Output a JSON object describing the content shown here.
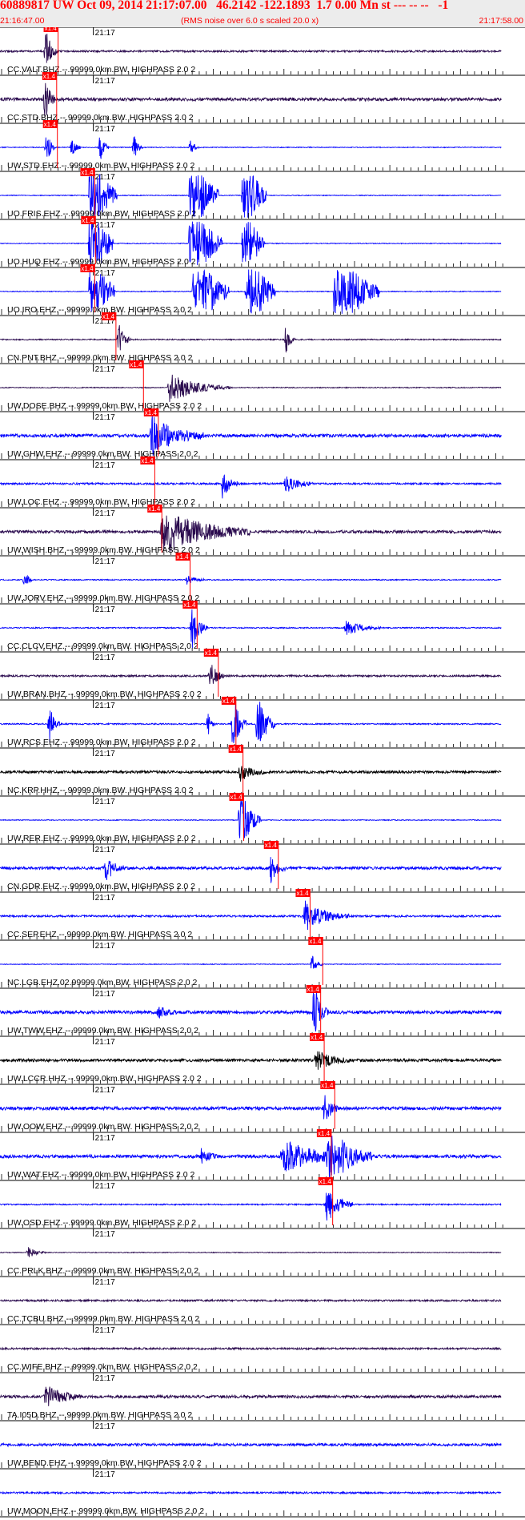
{
  "header": {
    "title": "60889817 UW Oct 09, 2014 21:17:07.00   46.2142 -122.1893  1.7 0.00 Mn st --- -- --   -1",
    "start_time": "21:16:47.00",
    "noise_note": "(RMS noise over 6.0 s scaled 20.0 x)",
    "end_time": "21:17:58.00"
  },
  "colors": {
    "red": "#ff0000",
    "blue": "#0000ff",
    "dark": "#2a0a4e",
    "black": "#000000"
  },
  "chart_data": {
    "type": "line",
    "title": "60889817 UW Oct 09, 2014 21:17:07.00",
    "x_range": [
      "21:16:47.00",
      "21:17:58.00"
    ],
    "minute_label": "21:17",
    "pick_label": "x1.4",
    "traces": [
      {
        "label": "CC.VALT.BHZ.--.99999.0km.BW. HIGHPASS  2.0  2",
        "color": "#2a0a4e",
        "noise": 0.14,
        "pick": 6.3,
        "bursts": [
          [
            6.5,
            2.0,
            0.7
          ]
        ]
      },
      {
        "label": "CC.STD.BHZ.--.99999.0km.BW. HIGHPASS  2.0  2",
        "color": "#2a0a4e",
        "noise": 0.24,
        "pick": 6.1,
        "bursts": [
          [
            6.4,
            2.0,
            0.6
          ]
        ]
      },
      {
        "label": "UW.STD.EHZ.--.99999.0km.BW. HIGHPASS  2.0  2",
        "color": "#0000ff",
        "noise": 0.06,
        "pick": 6.2,
        "bursts": [
          [
            6.6,
            1.6,
            0.5
          ],
          [
            10.2,
            0.9,
            0.5
          ],
          [
            14.2,
            1.4,
            0.5
          ],
          [
            19.0,
            1.1,
            0.5
          ],
          [
            27.0,
            0.7,
            0.5
          ]
        ]
      },
      {
        "label": "UO.FRIS.EHZ.--.99999.0km.BW. HIGHPASS  2.0  2",
        "color": "#0000ff",
        "noise": 0.06,
        "pick": 11.5,
        "bursts": [
          [
            12.8,
            6.0,
            1.5
          ],
          [
            27.0,
            6.0,
            1.6
          ],
          [
            34.5,
            6.0,
            1.3
          ]
        ]
      },
      {
        "label": "UO.HUQ.EHZ.--.99999.0km.BW. HIGHPASS  2.0  2",
        "color": "#0000ff",
        "noise": 0.06,
        "pick": 11.6,
        "bursts": [
          [
            12.8,
            6.0,
            1.3
          ],
          [
            27.0,
            6.0,
            1.8
          ],
          [
            34.5,
            6.0,
            1.2
          ]
        ]
      },
      {
        "label": "UO.IRO.EHZ.--.99999.0km.BW. HIGHPASS  2.0  2",
        "color": "#0000ff",
        "noise": 0.06,
        "pick": 11.5,
        "bursts": [
          [
            12.8,
            6.0,
            1.4
          ],
          [
            27.5,
            6.0,
            2.0
          ],
          [
            35.0,
            6.0,
            1.6
          ],
          [
            47.5,
            6.0,
            2.5
          ]
        ]
      },
      {
        "label": "CN.PNT.BHZ.--.99999.0km.BW. HIGHPASS  2.0  2",
        "color": "#2a0a4e",
        "noise": 0.09,
        "pick": 14.5,
        "bursts": [
          [
            16.8,
            1.5,
            0.7
          ],
          [
            40.5,
            1.4,
            0.5
          ]
        ]
      },
      {
        "label": "UW.DOSE.BHZ.--.99999.0km.BW. HIGHPASS  2.0  2",
        "color": "#2a0a4e",
        "noise": 0.07,
        "pick": 18.4,
        "bursts": [
          [
            24.0,
            1.3,
            3.5
          ]
        ]
      },
      {
        "label": "UW.GHW.EHZ.--.99999.0km.BW. HIGHPASS  2.0  2",
        "color": "#0000ff",
        "noise": 0.25,
        "pick": 20.5,
        "bursts": [
          [
            21.5,
            1.8,
            3.0
          ]
        ]
      },
      {
        "label": "UW.LOC.EHZ.--.99999.0km.BW. HIGHPASS  2.0  2",
        "color": "#0000ff",
        "noise": 0.14,
        "pick": 20.0,
        "bursts": [
          [
            31.5,
            1.3,
            1.0
          ],
          [
            40.5,
            0.8,
            1.5
          ]
        ]
      },
      {
        "label": "UW.WISH.BHZ.--.99999.0km.BW. HIGHPASS  2.0  2",
        "color": "#2a0a4e",
        "noise": 0.22,
        "pick": 21.0,
        "bursts": [
          [
            23.0,
            2.2,
            5.0
          ]
        ]
      },
      {
        "label": "UW.JORV.EHZ.--.99999.0km.BW. HIGHPASS  2.0  2",
        "color": "#0000ff",
        "noise": 0.08,
        "pick": 25.0,
        "bursts": [
          [
            3.5,
            0.9,
            0.4
          ],
          [
            26.5,
            0.5,
            1.0
          ]
        ]
      },
      {
        "label": "CC.CLCV.EHZ.--.99999.0km.BW. HIGHPASS  2.0  2",
        "color": "#0000ff",
        "noise": 0.09,
        "pick": 26.0,
        "bursts": [
          [
            27.2,
            2.0,
            0.9
          ],
          [
            49.0,
            0.7,
            2.0
          ]
        ]
      },
      {
        "label": "UW.BRAN.BHZ.--.99999.0km.BW. HIGHPASS  2.0  2",
        "color": "#2a0a4e",
        "noise": 0.14,
        "pick": 29.0,
        "bursts": [
          [
            29.8,
            1.3,
            0.8
          ]
        ]
      },
      {
        "label": "UW.RCS.EHZ.--.99999.0km.BW. HIGHPASS  2.0  2",
        "color": "#0000ff",
        "noise": 0.1,
        "pick": 31.5,
        "bursts": [
          [
            7.0,
            1.8,
            0.6
          ],
          [
            29.5,
            1.2,
            0.4
          ],
          [
            33.0,
            3.0,
            0.8
          ],
          [
            36.5,
            3.0,
            1.0
          ]
        ]
      },
      {
        "label": "NC.KRP.HHZ.--.99999.0km.BW. HIGHPASS  2.0  2",
        "color": "#000000",
        "noise": 0.2,
        "pick": 32.5,
        "bursts": [
          [
            34.0,
            0.8,
            1.5
          ]
        ]
      },
      {
        "label": "UW.RER.EHZ.--.99999.0km.BW. HIGHPASS  2.0  2",
        "color": "#0000ff",
        "noise": 0.06,
        "pick": 32.6,
        "bursts": [
          [
            34.0,
            3.5,
            1.2
          ]
        ]
      },
      {
        "label": "CN.GDR.EHZ.--.99999.0km.BW. HIGHPASS  2.0  2",
        "color": "#0000ff",
        "noise": 0.22,
        "pick": 37.5,
        "bursts": [
          [
            15.0,
            1.2,
            1.0
          ],
          [
            38.4,
            1.3,
            0.8
          ]
        ]
      },
      {
        "label": "CC.SEP.EHZ.--.99999.0km.BW. HIGHPASS  2.0  2",
        "color": "#0000ff",
        "noise": 0.15,
        "pick": 42.0,
        "bursts": [
          [
            43.2,
            1.4,
            2.5
          ]
        ]
      },
      {
        "label": "NC.LGB.EHZ.02.99999.0km.BW. HIGHPASS  2.0  2",
        "color": "#0000ff",
        "noise": 0.05,
        "pick": 43.8,
        "bursts": [
          [
            44.2,
            0.9,
            0.6
          ]
        ]
      },
      {
        "label": "UW.TWW.EHZ.--.99999.0km.BW. HIGHPASS  2.0  2",
        "color": "#0000ff",
        "noise": 0.25,
        "pick": 43.5,
        "bursts": [
          [
            44.5,
            2.6,
            0.8
          ],
          [
            22.5,
            0.6,
            1.0
          ]
        ]
      },
      {
        "label": "UW.LCCR.HHZ.--.99999.0km.BW. HIGHPASS  2.0  2",
        "color": "#000000",
        "noise": 0.22,
        "pick": 44.0,
        "bursts": [
          [
            44.8,
            0.9,
            2.0
          ]
        ]
      },
      {
        "label": "UW.OOW.EHZ.--.99999.0km.BW. HIGHPASS  2.0  2",
        "color": "#0000ff",
        "noise": 0.25,
        "pick": 45.5,
        "bursts": [
          [
            46.0,
            1.4,
            0.8
          ]
        ]
      },
      {
        "label": "UW.WAT.EHZ.--.99999.0km.BW. HIGHPASS  2.0  2",
        "color": "#0000ff",
        "noise": 0.25,
        "pick": 45.0,
        "bursts": [
          [
            40.0,
            1.6,
            4.0
          ],
          [
            46.5,
            2.6,
            2.5
          ],
          [
            28.5,
            0.6,
            1.0
          ]
        ]
      },
      {
        "label": "UW.OSD.EHZ.--.99999.0km.BW. HIGHPASS  2.0  2",
        "color": "#0000ff",
        "noise": 0.1,
        "pick": 45.2,
        "bursts": [
          [
            46.2,
            1.8,
            1.5
          ]
        ]
      },
      {
        "label": "CC.PRLK.BHZ.--.99999.0km.BW. HIGHPASS  2.0  2",
        "color": "#2a0a4e",
        "noise": 0.06,
        "pick": null,
        "bursts": [
          [
            4.0,
            0.5,
            1.0
          ]
        ]
      },
      {
        "label": "CC.TCBU.BHZ.--.99999.0km.BW. HIGHPASS  2.0  2",
        "color": "#2a0a4e",
        "noise": 0.14,
        "pick": null,
        "bursts": []
      },
      {
        "label": "CC.WIFE.BHZ.--.99999.0km.BW. HIGHPASS  2.0  2",
        "color": "#2a0a4e",
        "noise": 0.14,
        "pick": null,
        "bursts": []
      },
      {
        "label": "TA.I05D.BHZ.--.99999.0km.BW. HIGHPASS  2.0  2",
        "color": "#2a0a4e",
        "noise": 0.22,
        "pick": null,
        "bursts": [
          [
            6.5,
            1.1,
            2.0
          ]
        ]
      },
      {
        "label": "UW.BEND.EHZ.--.99999.0km.BW. HIGHPASS  2.0  2",
        "color": "#0000ff",
        "noise": 0.2,
        "pick": null,
        "bursts": []
      },
      {
        "label": "UW.MOON.EHZ.--.99999.0km.BW. HIGHPASS  2.0  2",
        "color": "#0000ff",
        "noise": 0.14,
        "pick": null,
        "bursts": []
      }
    ]
  }
}
